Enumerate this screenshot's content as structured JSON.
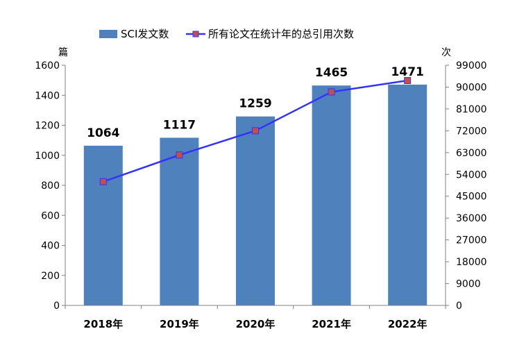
{
  "chart_data": {
    "type": "bar",
    "categories": [
      "2018年",
      "2019年",
      "2020年",
      "2021年",
      "2022年"
    ],
    "series": [
      {
        "name": "SCI发文数",
        "type": "bar",
        "axis": "left",
        "values": [
          1064,
          1117,
          1259,
          1465,
          1471
        ],
        "data_labels": [
          "1064",
          "1117",
          "1259",
          "1465",
          "1471"
        ],
        "color": "#4F81BD"
      },
      {
        "name": "所有论文在统计年的总引用次数",
        "type": "line",
        "axis": "right",
        "values": [
          51000,
          62000,
          72000,
          88000,
          92700
        ],
        "color": "#3333FF",
        "marker_color": "#C0504D"
      }
    ],
    "y_left": {
      "unit": "篇",
      "ylim": [
        0,
        1600
      ],
      "ticks": [
        "0",
        "200",
        "400",
        "600",
        "800",
        "1000",
        "1200",
        "1400",
        "1600"
      ]
    },
    "y_right": {
      "unit": "次",
      "ylim": [
        0,
        99000
      ],
      "ticks": [
        "0",
        "9000",
        "18000",
        "27000",
        "36000",
        "45000",
        "54000",
        "63000",
        "72000",
        "81000",
        "90000",
        "99000"
      ]
    },
    "legend": "top-center",
    "grid": false
  }
}
